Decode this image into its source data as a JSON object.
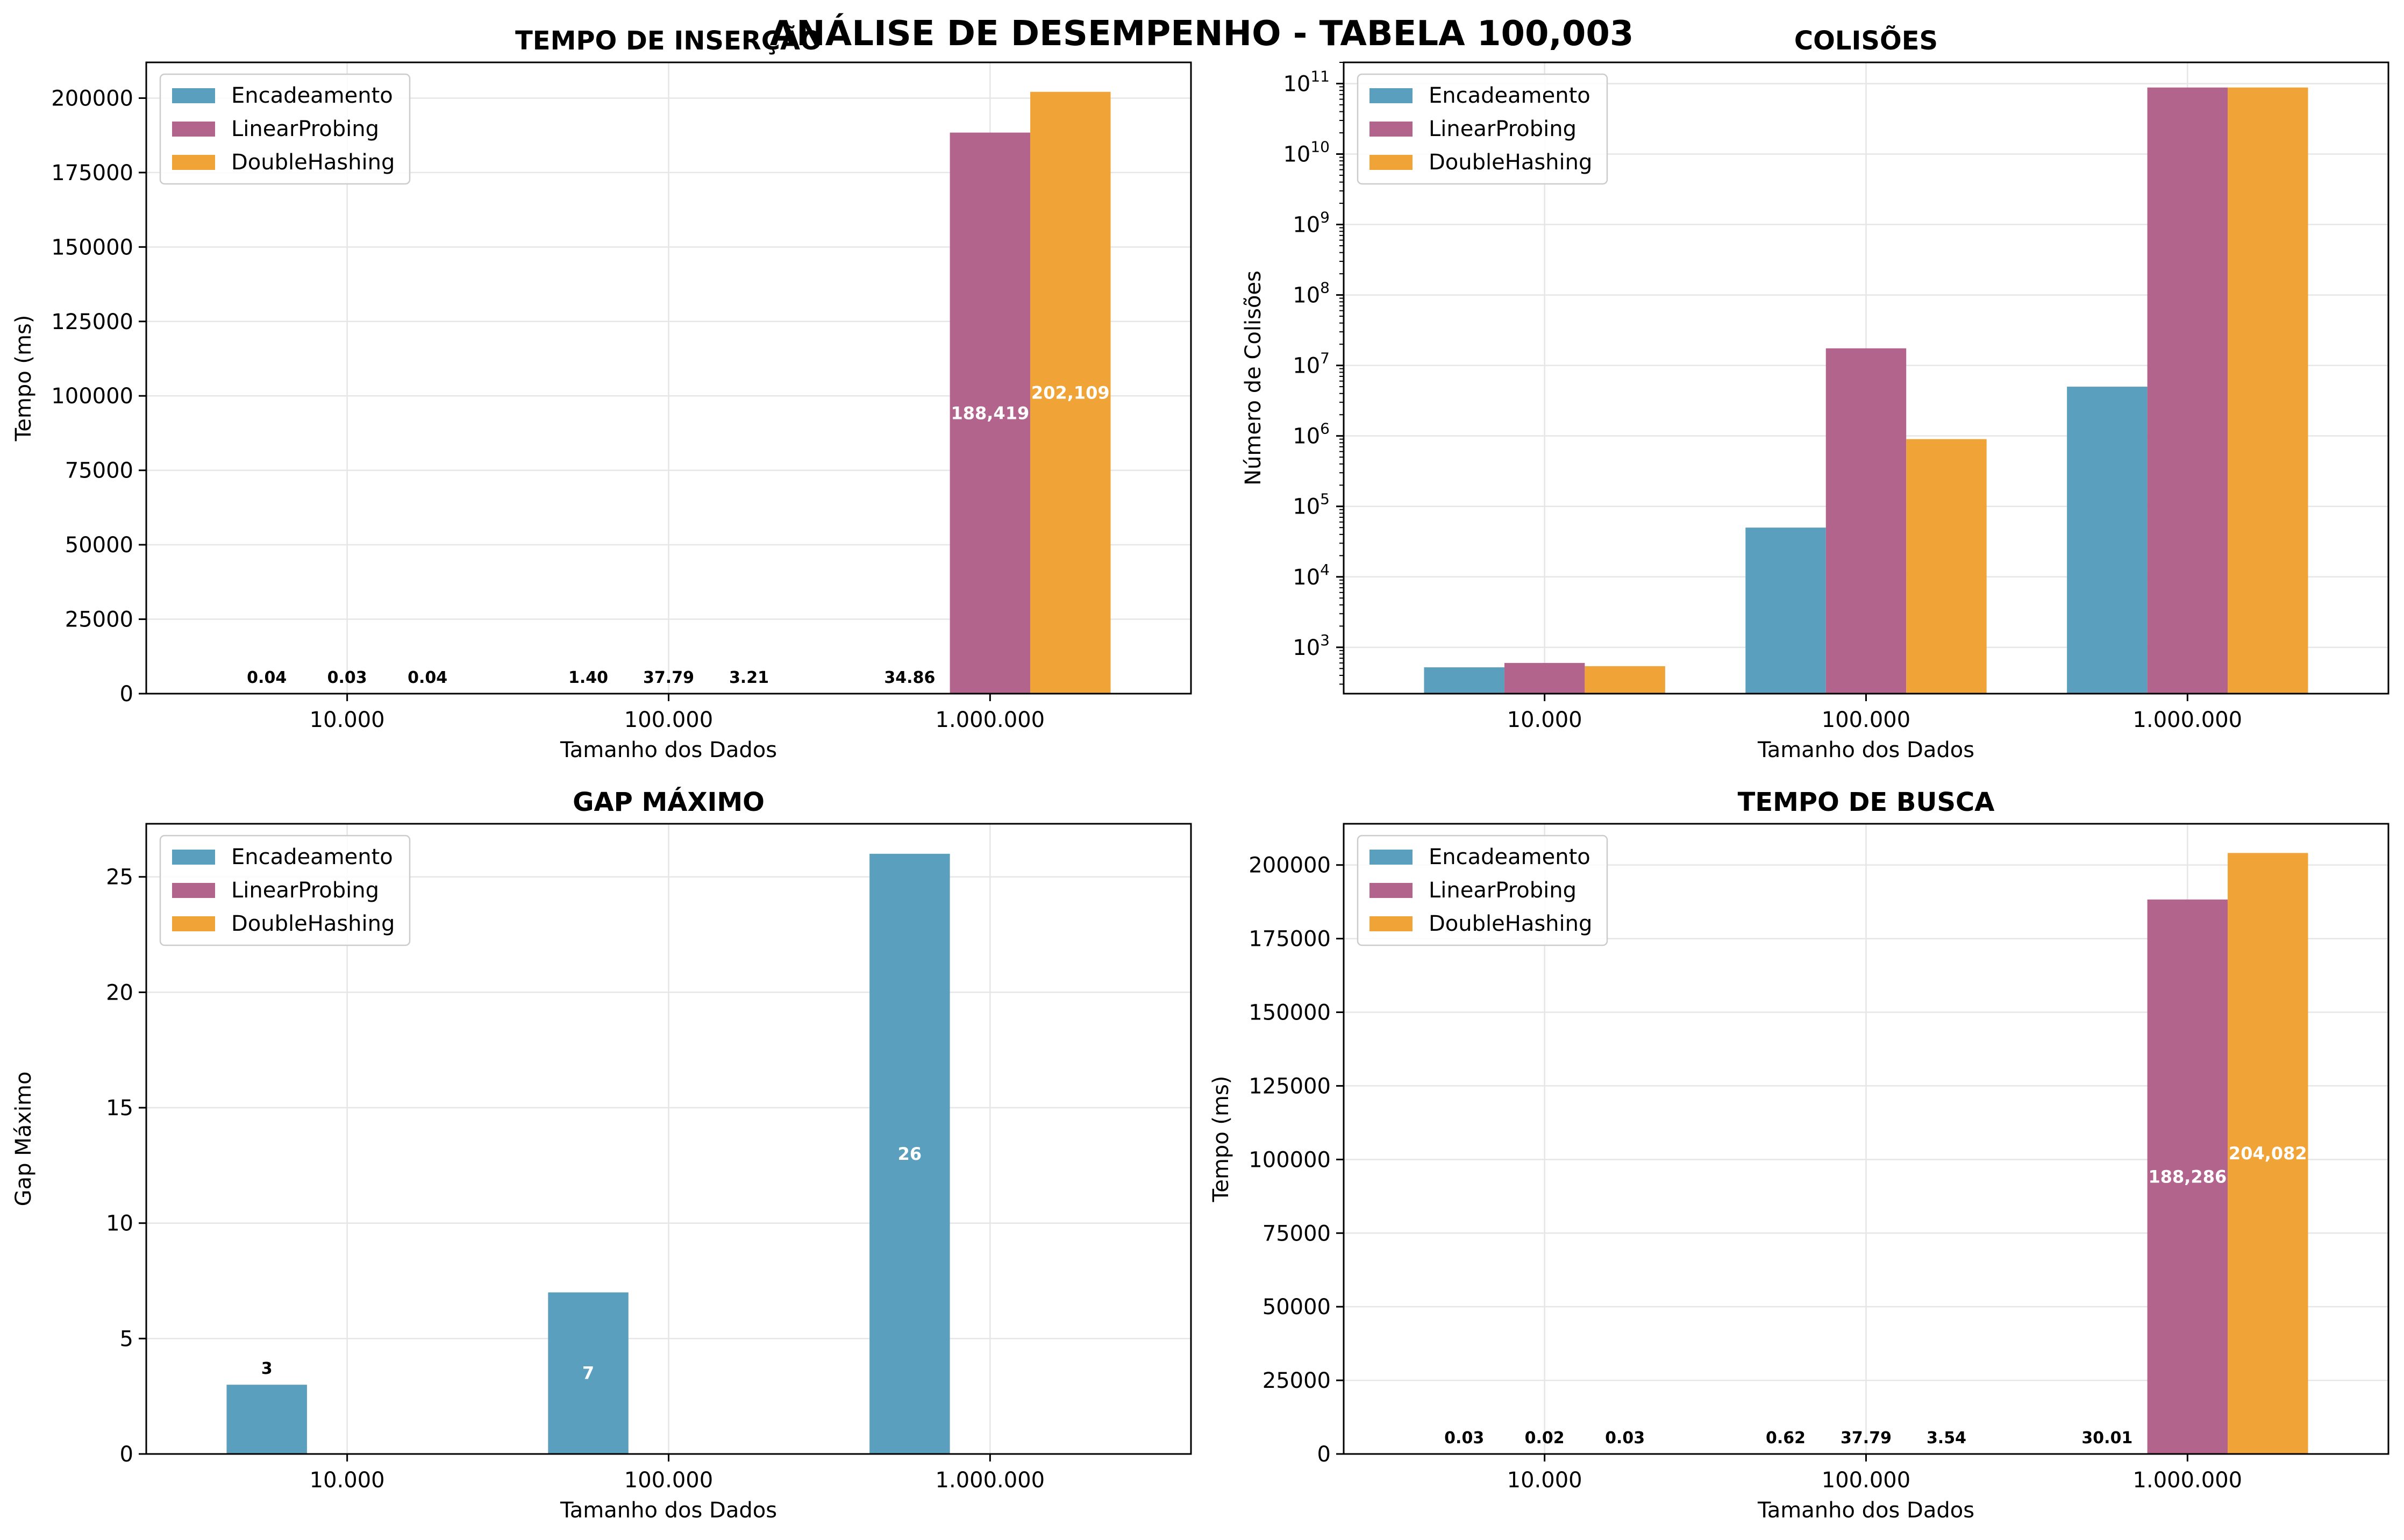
{
  "title": "ANÁLISE DE DESEMPENHO - TABELA 100,003",
  "colors": {
    "Encadeamento": "#5b9fbf",
    "LinearProbing": "#b3648c",
    "DoubleHashing": "#f0a336"
  },
  "chart_data": [
    {
      "type": "bar",
      "title": "TEMPO DE INSERÇÃO",
      "xlabel": "Tamanho dos Dados",
      "ylabel": "Tempo (ms)",
      "categories": [
        "10.000",
        "100.000",
        "1.000.000"
      ],
      "series": [
        {
          "name": "Encadeamento",
          "values": [
            0.04,
            1.4,
            34.86
          ]
        },
        {
          "name": "LinearProbing",
          "values": [
            0.03,
            37.79,
            188419
          ]
        },
        {
          "name": "DoubleHashing",
          "values": [
            0.04,
            3.21,
            202109
          ]
        }
      ],
      "labels": [
        [
          "0.04",
          "1.40",
          "34.86"
        ],
        [
          "0.03",
          "37.79",
          "188,419"
        ],
        [
          "0.04",
          "3.21",
          "202,109"
        ]
      ],
      "ylim": [
        0,
        212000
      ],
      "yticks": [
        0,
        25000,
        50000,
        75000,
        100000,
        125000,
        150000,
        175000,
        200000
      ],
      "yscale": "linear",
      "grid": true,
      "legend": "top-left"
    },
    {
      "type": "bar",
      "title": "COLISÕES",
      "xlabel": "Tamanho dos Dados",
      "ylabel": "Número de Colisões",
      "categories": [
        "10.000",
        "100.000",
        "1.000.000"
      ],
      "series": [
        {
          "name": "Encadeamento",
          "values": [
            520,
            50000,
            5000000
          ]
        },
        {
          "name": "LinearProbing",
          "values": [
            600,
            17500000,
            88000000000
          ]
        },
        {
          "name": "DoubleHashing",
          "values": [
            540,
            900000,
            88000000000
          ]
        }
      ],
      "labels": null,
      "ylim": [
        220,
        200000000000
      ],
      "ytick_exponents": [
        3,
        4,
        5,
        6,
        7,
        8,
        9,
        10,
        11
      ],
      "yscale": "log",
      "grid": true,
      "legend": "top-left"
    },
    {
      "type": "bar",
      "title": "GAP MÁXIMO",
      "xlabel": "Tamanho dos Dados",
      "ylabel": "Gap Máximo",
      "categories": [
        "10.000",
        "100.000",
        "1.000.000"
      ],
      "series": [
        {
          "name": "Encadeamento",
          "values": [
            3,
            7,
            26
          ]
        },
        {
          "name": "LinearProbing",
          "values": [
            0,
            0,
            0
          ]
        },
        {
          "name": "DoubleHashing",
          "values": [
            0,
            0,
            0
          ]
        }
      ],
      "labels": [
        [
          "3",
          "7",
          "26"
        ],
        [
          "",
          "",
          ""
        ],
        [
          "",
          "",
          ""
        ]
      ],
      "ylim": [
        0,
        27.3
      ],
      "yticks": [
        0,
        5,
        10,
        15,
        20,
        25
      ],
      "yscale": "linear",
      "grid": true,
      "legend": "top-left"
    },
    {
      "type": "bar",
      "title": "TEMPO DE BUSCA",
      "xlabel": "Tamanho dos Dados",
      "ylabel": "Tempo (ms)",
      "categories": [
        "10.000",
        "100.000",
        "1.000.000"
      ],
      "series": [
        {
          "name": "Encadeamento",
          "values": [
            0.03,
            0.62,
            30.01
          ]
        },
        {
          "name": "LinearProbing",
          "values": [
            0.02,
            37.79,
            188286
          ]
        },
        {
          "name": "DoubleHashing",
          "values": [
            0.03,
            3.54,
            204082
          ]
        }
      ],
      "labels": [
        [
          "0.03",
          "0.62",
          "30.01"
        ],
        [
          "0.02",
          "37.79",
          "188,286"
        ],
        [
          "0.03",
          "3.54",
          "204,082"
        ]
      ],
      "ylim": [
        0,
        214000
      ],
      "yticks": [
        0,
        25000,
        50000,
        75000,
        100000,
        125000,
        150000,
        175000,
        200000
      ],
      "yscale": "linear",
      "grid": true,
      "legend": "top-left"
    }
  ]
}
